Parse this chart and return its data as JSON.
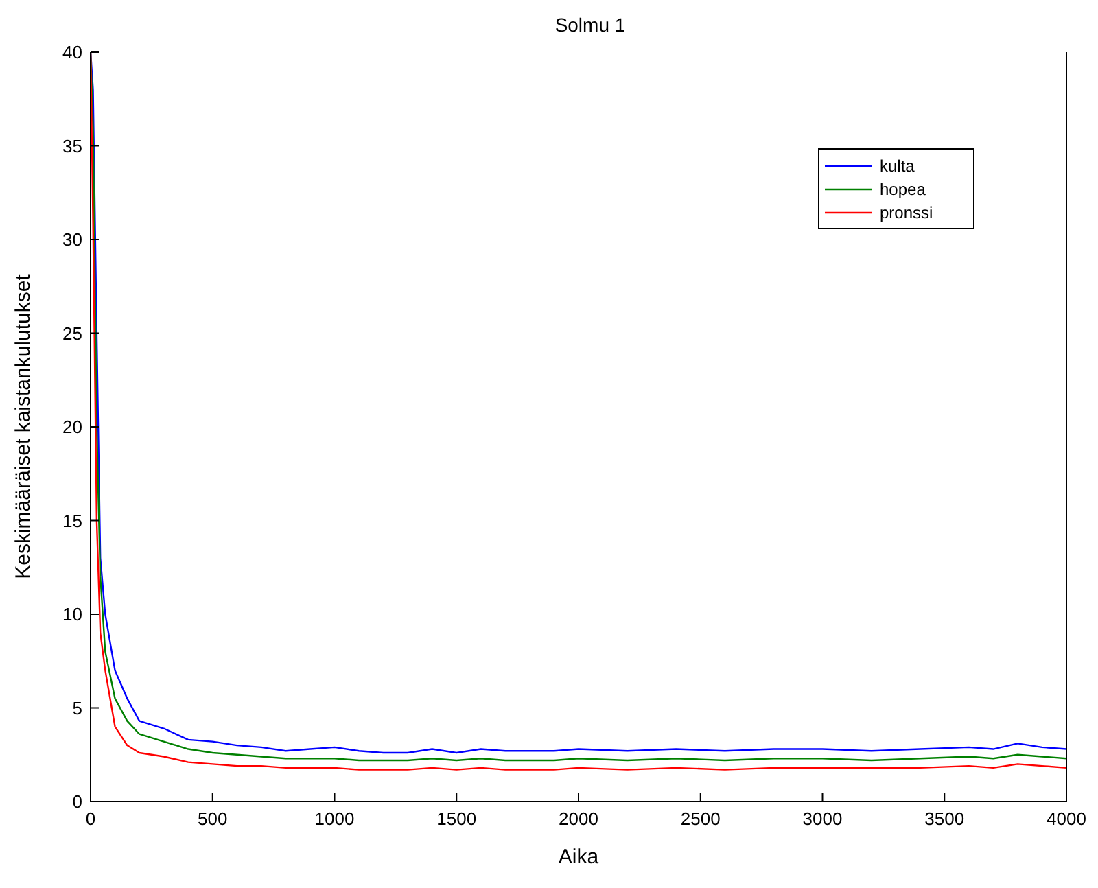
{
  "chart_data": {
    "type": "line",
    "title": "Solmu 1",
    "xlabel": "Aika",
    "ylabel": "Keskimääräiset kaistankulutukset",
    "xlim": [
      0,
      4000
    ],
    "ylim": [
      0,
      40
    ],
    "xticks": [
      0,
      500,
      1000,
      1500,
      2000,
      2500,
      3000,
      3500,
      4000
    ],
    "yticks": [
      0,
      5,
      10,
      15,
      20,
      25,
      30,
      35,
      40
    ],
    "grid": false,
    "legend": "top right",
    "marker": "none",
    "line_style": "solid",
    "x": [
      0,
      10,
      25,
      40,
      60,
      100,
      150,
      200,
      250,
      300,
      400,
      500,
      600,
      700,
      800,
      900,
      1000,
      1100,
      1200,
      1300,
      1400,
      1500,
      1600,
      1700,
      1800,
      1900,
      2000,
      2200,
      2400,
      2600,
      2800,
      3000,
      3200,
      3400,
      3600,
      3700,
      3800,
      3900,
      4000
    ],
    "series": [
      {
        "name": "kulta",
        "color": "#0000ff",
        "values": [
          40,
          38,
          25,
          13,
          10,
          7,
          5.5,
          4.3,
          4.1,
          3.9,
          3.3,
          3.2,
          3.0,
          2.9,
          2.7,
          2.8,
          2.9,
          2.7,
          2.6,
          2.6,
          2.8,
          2.6,
          2.8,
          2.7,
          2.7,
          2.7,
          2.8,
          2.7,
          2.8,
          2.7,
          2.8,
          2.8,
          2.7,
          2.8,
          2.9,
          2.8,
          3.1,
          2.9,
          2.8
        ]
      },
      {
        "name": "hopea",
        "color": "#008000",
        "values": [
          40,
          36,
          20,
          12,
          8,
          5.5,
          4.3,
          3.6,
          3.4,
          3.2,
          2.8,
          2.6,
          2.5,
          2.4,
          2.3,
          2.3,
          2.3,
          2.2,
          2.2,
          2.2,
          2.3,
          2.2,
          2.3,
          2.2,
          2.2,
          2.2,
          2.3,
          2.2,
          2.3,
          2.2,
          2.3,
          2.3,
          2.2,
          2.3,
          2.4,
          2.3,
          2.5,
          2.4,
          2.3
        ]
      },
      {
        "name": "pronssi",
        "color": "#ff0000",
        "values": [
          40,
          31,
          15,
          9,
          7,
          4,
          3,
          2.6,
          2.5,
          2.4,
          2.1,
          2.0,
          1.9,
          1.9,
          1.8,
          1.8,
          1.8,
          1.7,
          1.7,
          1.7,
          1.8,
          1.7,
          1.8,
          1.7,
          1.7,
          1.7,
          1.8,
          1.7,
          1.8,
          1.7,
          1.8,
          1.8,
          1.8,
          1.8,
          1.9,
          1.8,
          2.0,
          1.9,
          1.8
        ]
      }
    ]
  }
}
